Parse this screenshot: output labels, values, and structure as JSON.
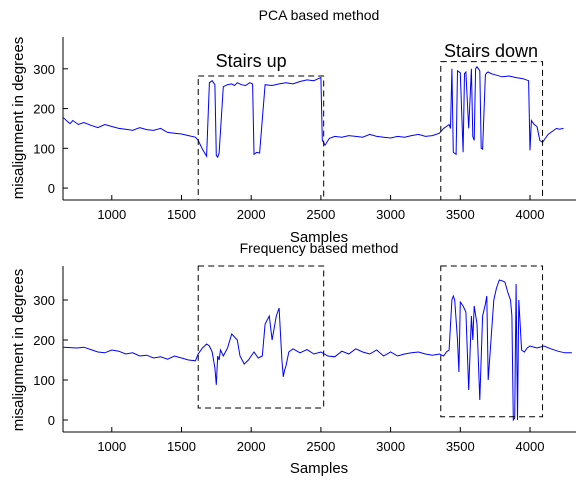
{
  "chart_data": [
    {
      "type": "line",
      "title": "PCA based method",
      "xlabel": "Samples",
      "ylabel": "misalignment in  degrees",
      "xlim": [
        650,
        4330
      ],
      "ylim": [
        -30,
        380
      ],
      "xticks": [
        1000,
        1500,
        2000,
        2500,
        3000,
        3500,
        4000
      ],
      "yticks": [
        0,
        100,
        200,
        300
      ],
      "grid": false,
      "series_color": "#0000ff",
      "series": [
        {
          "x": [
            650,
            680,
            700,
            720,
            760,
            800,
            850,
            900,
            950,
            1000,
            1050,
            1100,
            1150,
            1200,
            1250,
            1300,
            1350,
            1400,
            1450,
            1500,
            1550,
            1600,
            1620,
            1650,
            1660,
            1680,
            1700,
            1720,
            1740,
            1750,
            1760,
            1770,
            1800,
            1830,
            1860,
            1880,
            1900,
            1930,
            1960,
            1990,
            2010,
            2020,
            2040,
            2060,
            2100,
            2150,
            2200,
            2250,
            2300,
            2350,
            2400,
            2450,
            2480,
            2500,
            2510,
            2530,
            2560,
            2600,
            2650,
            2700,
            2750,
            2800,
            2850,
            2900,
            2950,
            3000,
            3050,
            3100,
            3150,
            3200,
            3250,
            3300,
            3350,
            3380,
            3400,
            3420,
            3430,
            3440,
            3450,
            3470,
            3480,
            3500,
            3520,
            3530,
            3540,
            3560,
            3580,
            3590,
            3600,
            3610,
            3620,
            3640,
            3650,
            3660,
            3680,
            3690,
            3700,
            3720,
            3750,
            3800,
            3850,
            3900,
            3950,
            3990,
            4000,
            4010,
            4030,
            4050,
            4070,
            4090,
            4110,
            4130,
            4150,
            4170,
            4190,
            4210,
            4240
          ],
          "y": [
            178,
            168,
            162,
            170,
            160,
            165,
            158,
            152,
            160,
            155,
            150,
            148,
            145,
            152,
            147,
            145,
            150,
            140,
            138,
            136,
            132,
            128,
            120,
            98,
            92,
            80,
            265,
            270,
            260,
            82,
            78,
            88,
            255,
            260,
            262,
            258,
            265,
            260,
            258,
            265,
            262,
            85,
            90,
            88,
            260,
            258,
            262,
            265,
            262,
            268,
            272,
            270,
            275,
            278,
            120,
            108,
            125,
            130,
            128,
            132,
            130,
            128,
            135,
            130,
            128,
            126,
            130,
            128,
            132,
            135,
            130,
            132,
            138,
            150,
            155,
            160,
            150,
            300,
            90,
            85,
            295,
            290,
            90,
            288,
            292,
            150,
            300,
            130,
            120,
            300,
            305,
            295,
            100,
            98,
            285,
            290,
            292,
            288,
            285,
            280,
            282,
            278,
            275,
            270,
            95,
            170,
            160,
            155,
            120,
            115,
            125,
            135,
            140,
            145,
            150,
            148,
            150
          ]
        }
      ],
      "annotations": [
        {
          "text": "Stairs up",
          "x": 2000,
          "y": 305
        },
        {
          "text": "Stairs down",
          "x": 3720,
          "y": 330
        }
      ],
      "boxes": [
        {
          "x0": 1620,
          "x1": 2520,
          "y0": -30,
          "y1": 282
        },
        {
          "x0": 3360,
          "x1": 4090,
          "y0": -30,
          "y1": 318
        }
      ]
    },
    {
      "type": "line",
      "title": "Frequency based method",
      "xlabel": "Samples",
      "ylabel": "misalignment in  degrees",
      "xlim": [
        650,
        4330
      ],
      "ylim": [
        -30,
        385
      ],
      "xticks": [
        1000,
        1500,
        2000,
        2500,
        3000,
        3500,
        4000
      ],
      "yticks": [
        0,
        100,
        200,
        300
      ],
      "grid": false,
      "series_color": "#0000ff",
      "series": [
        {
          "x": [
            650,
            700,
            750,
            800,
            850,
            900,
            950,
            1000,
            1050,
            1100,
            1150,
            1200,
            1250,
            1300,
            1350,
            1400,
            1450,
            1500,
            1550,
            1600,
            1620,
            1650,
            1680,
            1700,
            1720,
            1740,
            1750,
            1760,
            1770,
            1780,
            1800,
            1830,
            1860,
            1900,
            1920,
            1950,
            1980,
            2000,
            2020,
            2050,
            2080,
            2100,
            2130,
            2150,
            2180,
            2200,
            2220,
            2230,
            2240,
            2250,
            2270,
            2300,
            2350,
            2400,
            2450,
            2500,
            2550,
            2600,
            2650,
            2700,
            2750,
            2800,
            2850,
            2900,
            2950,
            3000,
            3050,
            3100,
            3150,
            3200,
            3250,
            3300,
            3350,
            3380,
            3400,
            3420,
            3440,
            3450,
            3460,
            3480,
            3490,
            3500,
            3520,
            3540,
            3560,
            3580,
            3590,
            3600,
            3620,
            3640,
            3660,
            3680,
            3690,
            3700,
            3720,
            3740,
            3760,
            3780,
            3800,
            3820,
            3840,
            3860,
            3870,
            3880,
            3890,
            3900,
            3910,
            3920,
            3940,
            3960,
            3980,
            4000,
            4050,
            4100,
            4150,
            4200,
            4250,
            4300
          ],
          "y": [
            182,
            181,
            180,
            182,
            176,
            170,
            168,
            175,
            172,
            165,
            168,
            160,
            162,
            155,
            158,
            152,
            160,
            155,
            150,
            148,
            165,
            180,
            190,
            185,
            170,
            130,
            88,
            160,
            150,
            175,
            160,
            180,
            215,
            200,
            160,
            140,
            150,
            160,
            170,
            155,
            160,
            240,
            260,
            200,
            260,
            280,
            150,
            108,
            125,
            135,
            170,
            178,
            168,
            176,
            165,
            170,
            160,
            158,
            172,
            165,
            178,
            170,
            165,
            175,
            160,
            170,
            160,
            165,
            168,
            170,
            165,
            162,
            165,
            160,
            170,
            175,
            300,
            310,
            300,
            200,
            120,
            295,
            285,
            270,
            75,
            260,
            200,
            285,
            240,
            50,
            260,
            290,
            310,
            100,
            200,
            300,
            330,
            350,
            348,
            345,
            320,
            300,
            260,
            0,
            5,
            340,
            0,
            300,
            175,
            170,
            180,
            185,
            180,
            185,
            178,
            172,
            168,
            168
          ]
        }
      ],
      "annotations": [],
      "boxes": [
        {
          "x0": 1620,
          "x1": 2520,
          "y0": 30,
          "y1": 385
        },
        {
          "x0": 3360,
          "x1": 4090,
          "y0": 8,
          "y1": 385
        }
      ]
    }
  ]
}
